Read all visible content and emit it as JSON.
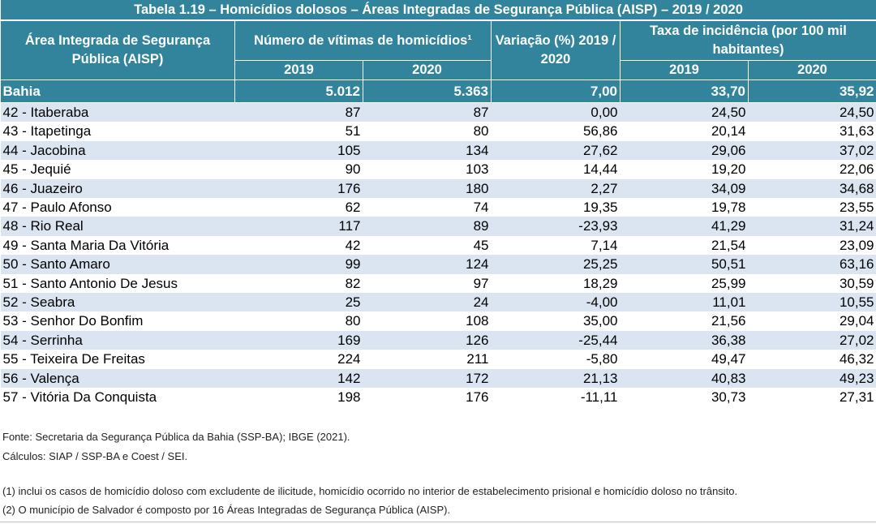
{
  "title": "Tabela 1.19 – Homicídios dolosos – Áreas Integradas de Segurança Pública (AISP) – 2019 / 2020",
  "headers": {
    "area": "Área Integrada de Segurança Pública (AISP)",
    "victims": "Número de vítimas de homicídios¹",
    "variation": "Variação (%) 2019 / 2020",
    "rate": "Taxa de incidência (por 100 mil habitantes)",
    "year_a": "2019",
    "year_b": "2020"
  },
  "total": {
    "name": "Bahia",
    "v2019": "5.012",
    "v2020": "5.363",
    "var": "7,00",
    "r2019": "33,70",
    "r2020": "35,92"
  },
  "rows": [
    {
      "name": "42 - Itaberaba",
      "v2019": "87",
      "v2020": "87",
      "var": "0,00",
      "r2019": "24,50",
      "r2020": "24,50"
    },
    {
      "name": "43 - Itapetinga",
      "v2019": "51",
      "v2020": "80",
      "var": "56,86",
      "r2019": "20,14",
      "r2020": "31,63"
    },
    {
      "name": "44 - Jacobina",
      "v2019": "105",
      "v2020": "134",
      "var": "27,62",
      "r2019": "29,06",
      "r2020": "37,02"
    },
    {
      "name": "45 - Jequié",
      "v2019": "90",
      "v2020": "103",
      "var": "14,44",
      "r2019": "19,20",
      "r2020": "22,06"
    },
    {
      "name": "46 - Juazeiro",
      "v2019": "176",
      "v2020": "180",
      "var": "2,27",
      "r2019": "34,09",
      "r2020": "34,68"
    },
    {
      "name": "47 - Paulo Afonso",
      "v2019": "62",
      "v2020": "74",
      "var": "19,35",
      "r2019": "19,78",
      "r2020": "23,55"
    },
    {
      "name": "48 - Rio Real",
      "v2019": "117",
      "v2020": "89",
      "var": "-23,93",
      "r2019": "41,29",
      "r2020": "31,24"
    },
    {
      "name": "49 - Santa Maria Da Vitória",
      "v2019": "42",
      "v2020": "45",
      "var": "7,14",
      "r2019": "21,54",
      "r2020": "23,09"
    },
    {
      "name": "50 - Santo Amaro",
      "v2019": "99",
      "v2020": "124",
      "var": "25,25",
      "r2019": "50,51",
      "r2020": "63,16"
    },
    {
      "name": "51 - Santo Antonio De Jesus",
      "v2019": "82",
      "v2020": "97",
      "var": "18,29",
      "r2019": "25,99",
      "r2020": "30,59"
    },
    {
      "name": "52 - Seabra",
      "v2019": "25",
      "v2020": "24",
      "var": "-4,00",
      "r2019": "11,01",
      "r2020": "10,55"
    },
    {
      "name": "53 - Senhor Do Bonfim",
      "v2019": "80",
      "v2020": "108",
      "var": "35,00",
      "r2019": "21,56",
      "r2020": "29,04"
    },
    {
      "name": "54 - Serrinha",
      "v2019": "169",
      "v2020": "126",
      "var": "-25,44",
      "r2019": "36,38",
      "r2020": "27,02"
    },
    {
      "name": "55 - Teixeira De Freitas",
      "v2019": "224",
      "v2020": "211",
      "var": "-5,80",
      "r2019": "49,47",
      "r2020": "46,32"
    },
    {
      "name": "56 - Valença",
      "v2019": "142",
      "v2020": "172",
      "var": "21,13",
      "r2019": "40,83",
      "r2020": "49,23"
    },
    {
      "name": "57 - Vitória Da Conquista",
      "v2019": "198",
      "v2020": "176",
      "var": "-11,11",
      "r2019": "30,73",
      "r2020": "27,31"
    }
  ],
  "notes": {
    "source": "Fonte: Secretaria da Segurança Pública da Bahia (SSP-BA); IBGE (2021).",
    "calc": "Cálculos: SIAP / SSP-BA e Coest / SEI.",
    "note1": "(1) inclui os casos de homicídio doloso com excludente de ilicitude, homicídio ocorrido no interior de estabelecimento prisional e homicídio doloso no trânsito.",
    "note2": "(2) O município de Salvador é composto por 16 Áreas Integradas de Segurança Pública (AISP)."
  },
  "colors": {
    "header": "#31849b",
    "stripe": "#dbe5f1"
  }
}
